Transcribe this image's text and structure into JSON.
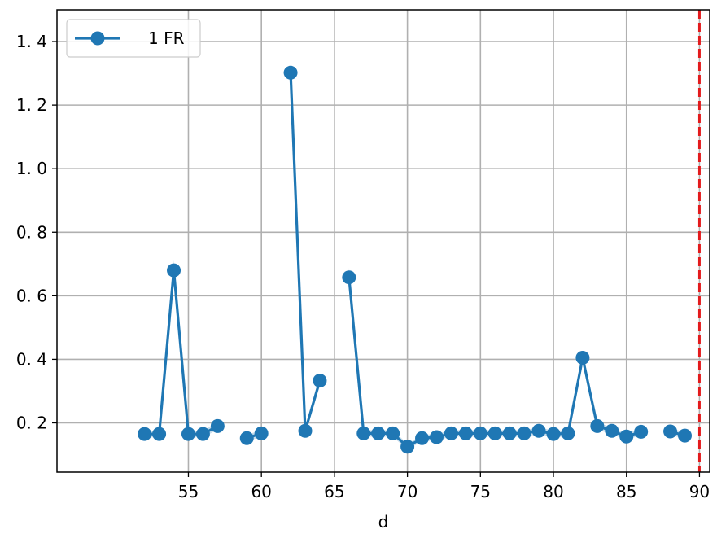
{
  "chart_data": {
    "type": "line",
    "xlabel": "d",
    "ylabel": "",
    "xlim": [
      46.0,
      90.7
    ],
    "ylim": [
      0.045,
      1.5
    ],
    "x_ticks": [
      55,
      60,
      65,
      70,
      75,
      80,
      85,
      90
    ],
    "y_ticks": [
      0.2,
      0.4,
      0.6,
      0.8,
      1.0,
      1.2,
      1.4
    ],
    "x_tick_labels": [
      "55",
      "60",
      "65",
      "70",
      "75",
      "80",
      "85",
      "90"
    ],
    "y_tick_labels": [
      "0. 2",
      "0. 4",
      "0. 6",
      "0. 8",
      "1. 0",
      "1. 2",
      "1. 4"
    ],
    "grid": true,
    "legend_position": "top-left",
    "series": [
      {
        "name": "1  FR",
        "color": "#1f77b4",
        "marker": "circle",
        "segments": [
          [
            [
              52,
              0.165
            ],
            [
              53,
              0.165
            ],
            [
              54,
              0.68
            ],
            [
              55,
              0.165
            ],
            [
              56,
              0.165
            ],
            [
              57,
              0.19
            ]
          ],
          [
            [
              59,
              0.152
            ],
            [
              60,
              0.167
            ]
          ],
          [
            [
              62,
              1.302
            ],
            [
              63,
              0.175
            ],
            [
              64,
              0.333
            ]
          ],
          [
            [
              66,
              0.658
            ],
            [
              67,
              0.167
            ],
            [
              68,
              0.167
            ],
            [
              69,
              0.167
            ],
            [
              70,
              0.125
            ],
            [
              71,
              0.152
            ],
            [
              72,
              0.155
            ],
            [
              73,
              0.167
            ],
            [
              74,
              0.167
            ],
            [
              75,
              0.167
            ],
            [
              76,
              0.167
            ],
            [
              77,
              0.167
            ],
            [
              78,
              0.167
            ],
            [
              79,
              0.175
            ],
            [
              80,
              0.165
            ],
            [
              81,
              0.167
            ],
            [
              82,
              0.405
            ],
            [
              83,
              0.19
            ],
            [
              84,
              0.175
            ],
            [
              85,
              0.157
            ],
            [
              86,
              0.172
            ]
          ],
          [
            [
              88,
              0.173
            ],
            [
              89,
              0.16
            ]
          ]
        ]
      }
    ],
    "vline": {
      "x": 90,
      "color": "#e31a1c",
      "style": "dashed"
    }
  }
}
